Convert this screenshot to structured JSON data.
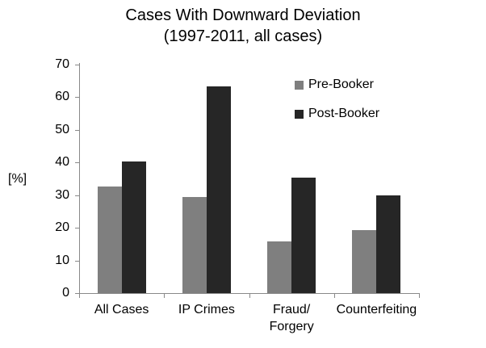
{
  "chart_data": {
    "type": "bar",
    "title": "Cases With Downward Deviation",
    "subtitle": "(1997-2011, all cases)",
    "ylabel": "[%]",
    "xlabel": "",
    "ylim": [
      0,
      70
    ],
    "yticks": [
      0,
      10,
      20,
      30,
      40,
      50,
      60,
      70
    ],
    "grid": false,
    "legend_position": "inside-upper-right",
    "axis_color": "#898989",
    "categories": [
      "All Cases",
      "IP Crimes",
      "Fraud/\nForgery",
      "Counterfeiting"
    ],
    "series": [
      {
        "name": "Pre-Booker",
        "color": "#7F7F7F",
        "values": [
          32.7,
          29.4,
          15.9,
          19.4
        ]
      },
      {
        "name": "Post-Booker",
        "color": "#262626",
        "values": [
          40.4,
          63.3,
          35.3,
          30.0
        ]
      }
    ]
  }
}
